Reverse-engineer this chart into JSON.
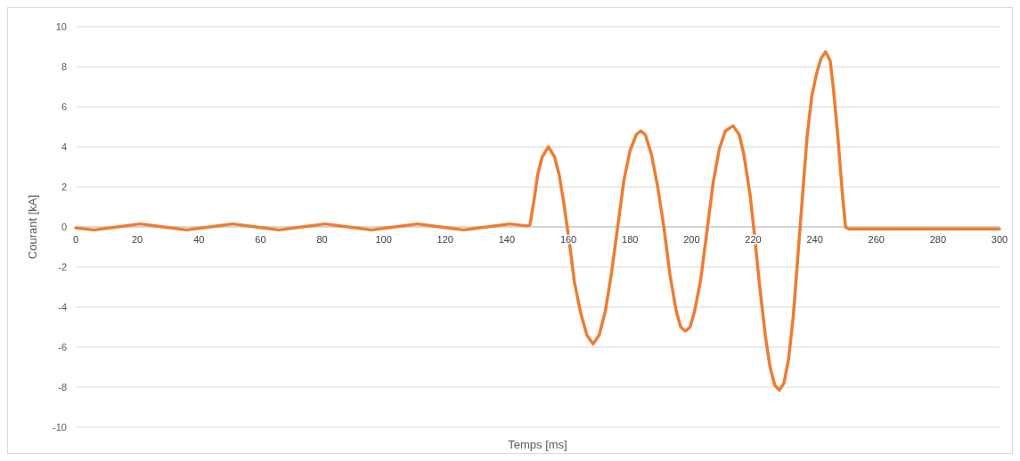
{
  "chart_data": {
    "type": "line",
    "xlabel": "Temps [ms]",
    "ylabel": "Courant [kA]",
    "xlim": [
      0,
      300
    ],
    "xticks": [
      0,
      20,
      40,
      60,
      80,
      100,
      120,
      140,
      160,
      180,
      200,
      220,
      240,
      260,
      280,
      300
    ],
    "ylim": [
      -10,
      10
    ],
    "yticks": [
      -10,
      -8,
      -6,
      -4,
      -2,
      0,
      2,
      4,
      6,
      8,
      10
    ],
    "grid": "y",
    "series": [
      {
        "color": "#ed7d31",
        "x": [
          0,
          6,
          13.5,
          21,
          28.5,
          36,
          43.5,
          51,
          58.5,
          66,
          73.5,
          81,
          88.5,
          96,
          103.5,
          111,
          118.5,
          126,
          133.5,
          141,
          146.5,
          147.5,
          149,
          150,
          151.5,
          153.5,
          155.5,
          157,
          158.5,
          160.5,
          162,
          164,
          166,
          168,
          170,
          172,
          174,
          176,
          178,
          180,
          182,
          183.5,
          185,
          187,
          189,
          191,
          193,
          195,
          196.5,
          198,
          199.5,
          201,
          203,
          205,
          207,
          209,
          211,
          213.5,
          215.5,
          217,
          219,
          220.5,
          222,
          224,
          225.5,
          227,
          228.5,
          230,
          231.5,
          233,
          234.5,
          236,
          237.5,
          239,
          240.5,
          242,
          243.5,
          245,
          246,
          247.5,
          249,
          250,
          251,
          300
        ],
        "values": [
          -0.05,
          -0.15,
          0,
          0.15,
          0,
          -0.15,
          0,
          0.15,
          0,
          -0.15,
          0,
          0.15,
          0,
          -0.15,
          0,
          0.15,
          0,
          -0.15,
          0,
          0.15,
          0.05,
          0.1,
          1.5,
          2.6,
          3.5,
          4.0,
          3.5,
          2.6,
          1.2,
          -1.0,
          -2.8,
          -4.3,
          -5.4,
          -5.85,
          -5.4,
          -4.2,
          -2.3,
          0,
          2.3,
          3.8,
          4.6,
          4.8,
          4.6,
          3.6,
          2.0,
          0,
          -2.4,
          -4.2,
          -5.0,
          -5.2,
          -5.0,
          -4.2,
          -2.6,
          -0.2,
          2.2,
          3.9,
          4.8,
          5.05,
          4.6,
          3.6,
          1.6,
          -0.5,
          -2.8,
          -5.5,
          -7.0,
          -7.9,
          -8.15,
          -7.8,
          -6.6,
          -4.5,
          -1.5,
          1.5,
          4.5,
          6.5,
          7.6,
          8.4,
          8.75,
          8.3,
          7.0,
          4.5,
          1.6,
          0,
          -0.1,
          -0.1
        ]
      }
    ]
  }
}
